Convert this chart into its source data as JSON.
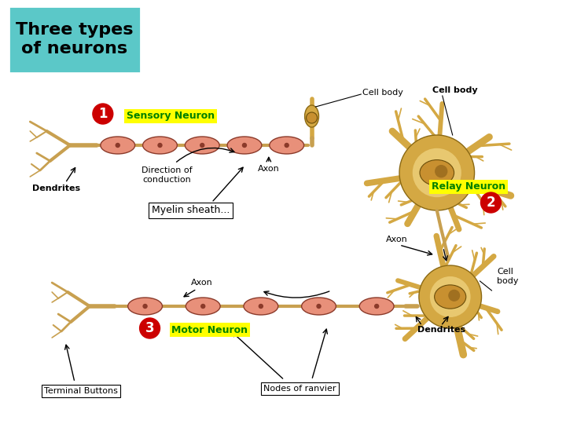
{
  "title": "Three types\nof neurons",
  "title_bg": "#5bc8c8",
  "title_color": "#000000",
  "title_fontsize": 16,
  "bg_color": "#ffffff",
  "labels": {
    "sensory_neuron": "Sensory Neuron",
    "relay_neuron": "Relay Neuron",
    "motor_neuron": "Motor Neuron",
    "cell_body_1": "Cell body",
    "cell_body_2": "Cell body",
    "cell_body_3": "Cell\nbody",
    "direction": "Direction of\nconduction",
    "axon_1": "Axon",
    "axon_2": "Axon",
    "axon_3": "Axon",
    "dendrites_1": "Dendrites",
    "dendrites_2": "Dendrites",
    "myelin": "Myelin sheath...",
    "terminal": "Terminal Buttons",
    "nodes": "Nodes of ranvier"
  },
  "label_box_color": "#ffff00",
  "label_text_color": "#008000",
  "circle_color": "#cc0000",
  "circle_text_color": "#ffffff",
  "neuron_body_color": "#d4a843",
  "neuron_body_light": "#e8c870",
  "neuron_nucleus_color": "#c89030",
  "neuron_nucleolus_color": "#a07020",
  "axon_seg_color": "#e8907a",
  "axon_seg_edge": "#8b3a2a",
  "axon_conn_color": "#c8a050",
  "dendrite_color": "#c8a050",
  "annotation_fontsize": 8,
  "label_fontsize": 9
}
